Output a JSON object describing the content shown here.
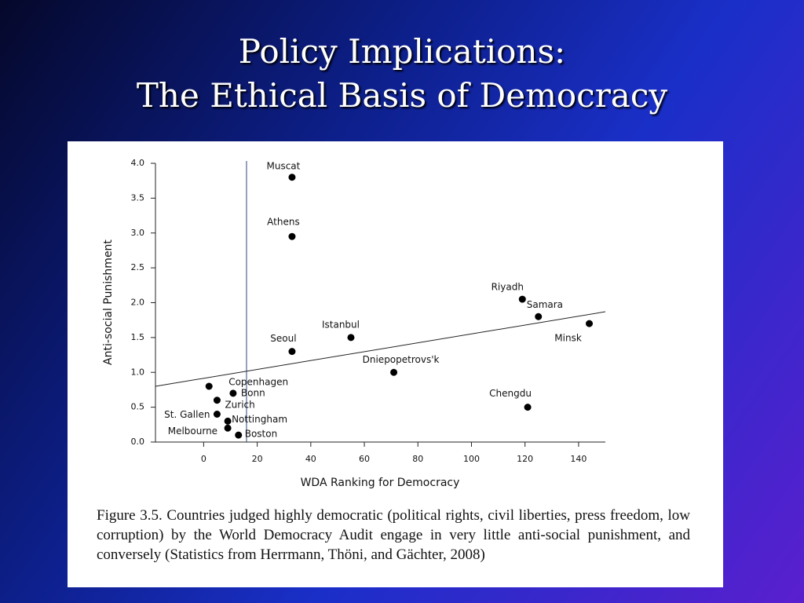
{
  "slide": {
    "title": [
      "Policy Implications:",
      "The Ethical Basis of Democracy"
    ],
    "caption": "Figure 3.5.  Countries judged highly democratic (political rights, civil liberties, press freedom, low corruption) by the World Democracy Audit engage in very little anti-social punishment, and conversely (Statistics from Herrmann, Thöni, and Gächter, 2008)"
  },
  "chart_data": {
    "type": "scatter",
    "x_label": "WDA Ranking for Democracy",
    "y_label": "Anti-social Punishment",
    "point_labels": [
      "Muscat",
      "Athens",
      "Riyadh",
      "Samara",
      "Minsk",
      "Istanbul",
      "Seoul",
      "Dniepopetrovs'k",
      "Chengdu",
      "Copenhagen",
      "Bonn",
      "Zurich",
      "St. Gallen",
      "Nottingham",
      "Melbourne",
      "Boston"
    ],
    "x": [
      33,
      33,
      119,
      125,
      144,
      55,
      33,
      71,
      121,
      2,
      11,
      5,
      5,
      9,
      9,
      13
    ],
    "values": [
      3.8,
      2.95,
      2.05,
      1.8,
      1.7,
      1.5,
      1.3,
      1.0,
      0.5,
      0.8,
      0.7,
      0.6,
      0.4,
      0.3,
      0.2,
      0.1
    ],
    "color": "#000000",
    "trend_line": {
      "x": [
        -18,
        150
      ],
      "y": [
        0.8,
        1.87
      ]
    },
    "reference_x": 16,
    "xlim": [
      -18,
      150
    ],
    "ylim": [
      0,
      4.0
    ],
    "xticks": [
      0,
      20,
      40,
      60,
      80,
      100,
      120,
      140
    ],
    "yticks": [
      {
        "value": 0,
        "label": "0.0"
      },
      0.5,
      {
        "value": 1,
        "label": "1.0"
      },
      1.5,
      {
        "value": 2,
        "label": "2.0"
      },
      2.5,
      {
        "value": 3,
        "label": "3.0"
      },
      3.5,
      {
        "value": 4,
        "label": "4.0"
      }
    ]
  }
}
